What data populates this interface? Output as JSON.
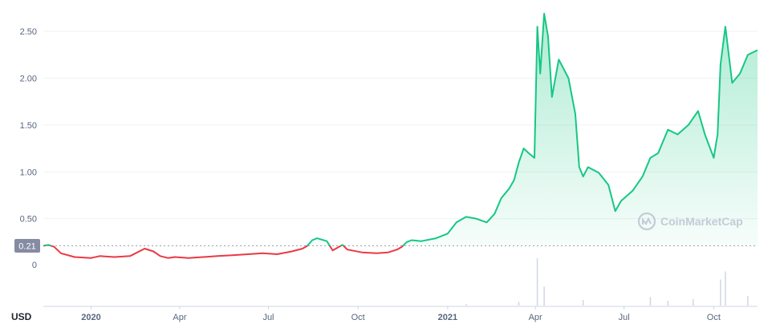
{
  "watermark": "CoinMarketCap",
  "colors": {
    "up": "#16c784",
    "down": "#ea3943",
    "grid": "#eff2f5",
    "text": "#58667e",
    "ref_badge": "#858ca2",
    "volume": "#cfd6e4"
  },
  "chart_data": {
    "type": "line",
    "currency_label": "USD",
    "reference_value": 0.21,
    "reference_label": "0.21",
    "ylim": [
      0,
      2.75
    ],
    "y_ticks": [
      {
        "value": 0.5,
        "label": "0.50"
      },
      {
        "value": 1.0,
        "label": "1.00"
      },
      {
        "value": 1.5,
        "label": "1.50"
      },
      {
        "value": 2.0,
        "label": "2.00"
      },
      {
        "value": 2.5,
        "label": "2.50"
      }
    ],
    "volume_axis_label": "0",
    "xlim": [
      "2019-11-13",
      "2021-11-15"
    ],
    "x_ticks": [
      {
        "date": "2020-01-01",
        "label": "2020",
        "bold": true
      },
      {
        "date": "2020-04-01",
        "label": "Apr",
        "bold": false
      },
      {
        "date": "2020-07-01",
        "label": "Jul",
        "bold": false
      },
      {
        "date": "2020-10-01",
        "label": "Oct",
        "bold": false
      },
      {
        "date": "2021-01-01",
        "label": "2021",
        "bold": true
      },
      {
        "date": "2021-04-01",
        "label": "Apr",
        "bold": false
      },
      {
        "date": "2021-07-01",
        "label": "Jul",
        "bold": false
      },
      {
        "date": "2021-10-01",
        "label": "Oct",
        "bold": false
      }
    ],
    "series": [
      {
        "points": [
          [
            "2019-11-13",
            0.21
          ],
          [
            "2019-11-18",
            0.22
          ],
          [
            "2019-11-24",
            0.2
          ],
          [
            "2019-12-01",
            0.13
          ],
          [
            "2019-12-15",
            0.09
          ],
          [
            "2020-01-01",
            0.08
          ],
          [
            "2020-01-10",
            0.1
          ],
          [
            "2020-01-25",
            0.09
          ],
          [
            "2020-02-10",
            0.1
          ],
          [
            "2020-02-25",
            0.18
          ],
          [
            "2020-03-05",
            0.15
          ],
          [
            "2020-03-12",
            0.1
          ],
          [
            "2020-03-20",
            0.08
          ],
          [
            "2020-03-27",
            0.09
          ],
          [
            "2020-04-10",
            0.08
          ],
          [
            "2020-04-25",
            0.09
          ],
          [
            "2020-05-10",
            0.1
          ],
          [
            "2020-05-25",
            0.11
          ],
          [
            "2020-06-10",
            0.12
          ],
          [
            "2020-06-25",
            0.13
          ],
          [
            "2020-07-10",
            0.12
          ],
          [
            "2020-07-25",
            0.15
          ],
          [
            "2020-08-05",
            0.18
          ],
          [
            "2020-08-10",
            0.21
          ],
          [
            "2020-08-15",
            0.27
          ],
          [
            "2020-08-20",
            0.29
          ],
          [
            "2020-08-30",
            0.26
          ],
          [
            "2020-09-05",
            0.16
          ],
          [
            "2020-09-10",
            0.19
          ],
          [
            "2020-09-15",
            0.22
          ],
          [
            "2020-09-20",
            0.17
          ],
          [
            "2020-10-05",
            0.14
          ],
          [
            "2020-10-20",
            0.13
          ],
          [
            "2020-11-01",
            0.14
          ],
          [
            "2020-11-10",
            0.17
          ],
          [
            "2020-11-15",
            0.2
          ],
          [
            "2020-11-20",
            0.25
          ],
          [
            "2020-11-25",
            0.27
          ],
          [
            "2020-12-05",
            0.26
          ],
          [
            "2020-12-20",
            0.29
          ],
          [
            "2021-01-01",
            0.34
          ],
          [
            "2021-01-10",
            0.46
          ],
          [
            "2021-01-20",
            0.52
          ],
          [
            "2021-01-30",
            0.5
          ],
          [
            "2021-02-10",
            0.46
          ],
          [
            "2021-02-18",
            0.55
          ],
          [
            "2021-02-25",
            0.72
          ],
          [
            "2021-03-05",
            0.82
          ],
          [
            "2021-03-10",
            0.91
          ],
          [
            "2021-03-15",
            1.1
          ],
          [
            "2021-03-20",
            1.25
          ],
          [
            "2021-03-25",
            1.2
          ],
          [
            "2021-03-31",
            1.15
          ],
          [
            "2021-04-03",
            2.55
          ],
          [
            "2021-04-06",
            2.05
          ],
          [
            "2021-04-10",
            2.69
          ],
          [
            "2021-04-14",
            2.45
          ],
          [
            "2021-04-18",
            1.8
          ],
          [
            "2021-04-25",
            2.2
          ],
          [
            "2021-05-05",
            2.0
          ],
          [
            "2021-05-12",
            1.62
          ],
          [
            "2021-05-16",
            1.05
          ],
          [
            "2021-05-20",
            0.95
          ],
          [
            "2021-05-25",
            1.05
          ],
          [
            "2021-06-05",
            0.99
          ],
          [
            "2021-06-15",
            0.86
          ],
          [
            "2021-06-22",
            0.58
          ],
          [
            "2021-06-28",
            0.69
          ],
          [
            "2021-07-10",
            0.8
          ],
          [
            "2021-07-20",
            0.95
          ],
          [
            "2021-07-28",
            1.15
          ],
          [
            "2021-08-05",
            1.2
          ],
          [
            "2021-08-15",
            1.45
          ],
          [
            "2021-08-25",
            1.4
          ],
          [
            "2021-09-05",
            1.5
          ],
          [
            "2021-09-15",
            1.65
          ],
          [
            "2021-09-22",
            1.4
          ],
          [
            "2021-10-01",
            1.15
          ],
          [
            "2021-10-05",
            1.4
          ],
          [
            "2021-10-08",
            2.15
          ],
          [
            "2021-10-13",
            2.55
          ],
          [
            "2021-10-20",
            1.95
          ],
          [
            "2021-10-28",
            2.05
          ],
          [
            "2021-11-05",
            2.25
          ],
          [
            "2021-11-15",
            2.3
          ]
        ]
      }
    ],
    "volume": {
      "points": [
        [
          "2021-01-20",
          0.03
        ],
        [
          "2021-03-15",
          0.08
        ],
        [
          "2021-04-03",
          1.0
        ],
        [
          "2021-04-10",
          0.4
        ],
        [
          "2021-05-20",
          0.12
        ],
        [
          "2021-07-28",
          0.18
        ],
        [
          "2021-08-15",
          0.1
        ],
        [
          "2021-09-10",
          0.14
        ],
        [
          "2021-10-08",
          0.55
        ],
        [
          "2021-10-13",
          0.72
        ],
        [
          "2021-11-05",
          0.2
        ]
      ]
    }
  }
}
